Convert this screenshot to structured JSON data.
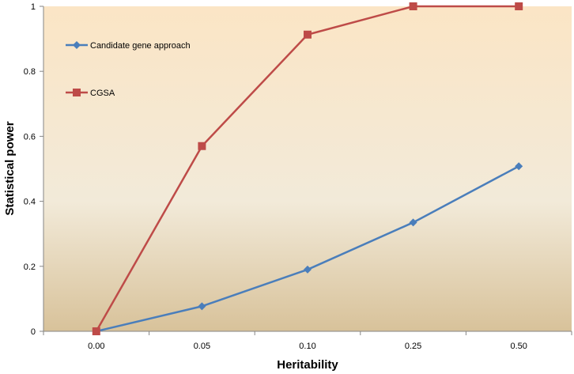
{
  "chart_data": {
    "type": "line",
    "title": "",
    "xlabel": "Heritability",
    "ylabel": "Statistical power",
    "categories": [
      "0.00",
      "0.05",
      "0.10",
      "0.25",
      "0.50"
    ],
    "ylim": [
      0,
      1
    ],
    "yticks": [
      0,
      0.2,
      0.4,
      0.6,
      0.8,
      1
    ],
    "ytick_labels": [
      "0",
      "0.2",
      "0.4",
      "0.6",
      "0.8",
      "1"
    ],
    "grid": false,
    "legend_position": "top-left",
    "series": [
      {
        "name": "Candidate gene approach",
        "values": [
          0.0,
          0.077,
          0.19,
          0.335,
          0.508
        ],
        "color": "#4a7ebb",
        "marker": "diamond"
      },
      {
        "name": "CGSA",
        "values": [
          0.0,
          0.57,
          0.913,
          1.0,
          1.0
        ],
        "color": "#be4b48",
        "marker": "square"
      }
    ],
    "background_top": "#fbe5c5",
    "background_mid": "#f2ead9",
    "background_bottom": "#d8c29a"
  }
}
